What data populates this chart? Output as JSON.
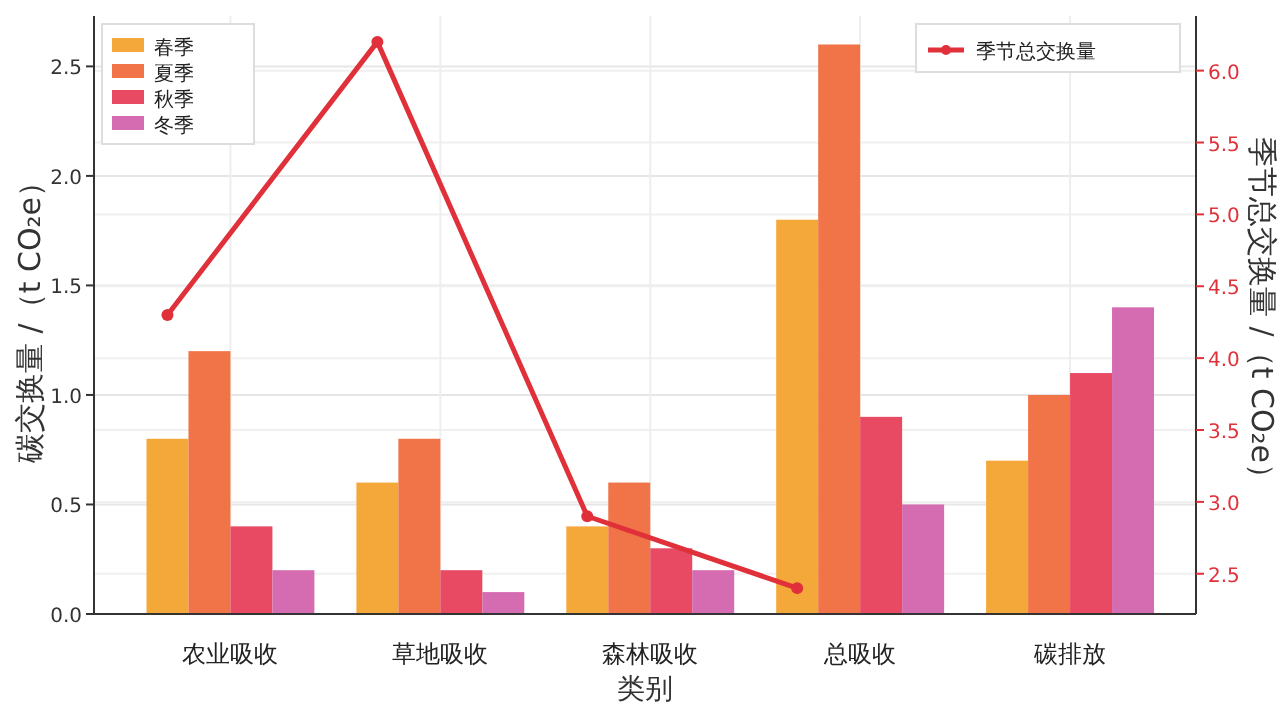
{
  "chart_data": {
    "type": "bar",
    "xlabel": "类别",
    "ylabel": "碳交换量 /（t CO₂e）",
    "y2label": "季节总交换量 /（t CO₂e）",
    "categories": [
      "农业吸收",
      "草地吸收",
      "森林吸收",
      "总吸收",
      "碳排放"
    ],
    "series": [
      {
        "name": "春季",
        "color": "#f5a83a",
        "values": [
          0.8,
          0.6,
          0.4,
          1.8,
          0.7
        ]
      },
      {
        "name": "夏季",
        "color": "#f07448",
        "values": [
          1.2,
          0.8,
          0.6,
          2.6,
          1.0
        ]
      },
      {
        "name": "秋季",
        "color": "#e84a63",
        "values": [
          0.4,
          0.2,
          0.3,
          0.9,
          1.1
        ]
      },
      {
        "name": "冬季",
        "color": "#d56bb0",
        "values": [
          0.2,
          0.1,
          0.2,
          0.5,
          1.4
        ]
      },
      {
        "name": "季节总交换量",
        "type": "line",
        "axis": "y2",
        "color": "#e0303a",
        "values": [
          4.3,
          6.2,
          2.9,
          2.4,
          null
        ]
      }
    ],
    "ylim": [
      0,
      2.73
    ],
    "yticks": [
      {
        "value": 0,
        "label": "0.0"
      },
      0.5,
      {
        "value": 1,
        "label": "1.0"
      },
      1.5,
      {
        "value": 2,
        "label": "2.0"
      },
      2.5
    ],
    "y2lim": [
      2.22,
      6.38
    ],
    "y2ticks": [
      2.5,
      {
        "value": 3,
        "label": "3.0"
      },
      3.5,
      {
        "value": 4,
        "label": "4.0"
      },
      4.5,
      {
        "value": 5,
        "label": "5.0"
      },
      5.5,
      {
        "value": 6,
        "label": "6.0"
      }
    ],
    "grid": true,
    "legend": "top",
    "marker": "circle"
  }
}
